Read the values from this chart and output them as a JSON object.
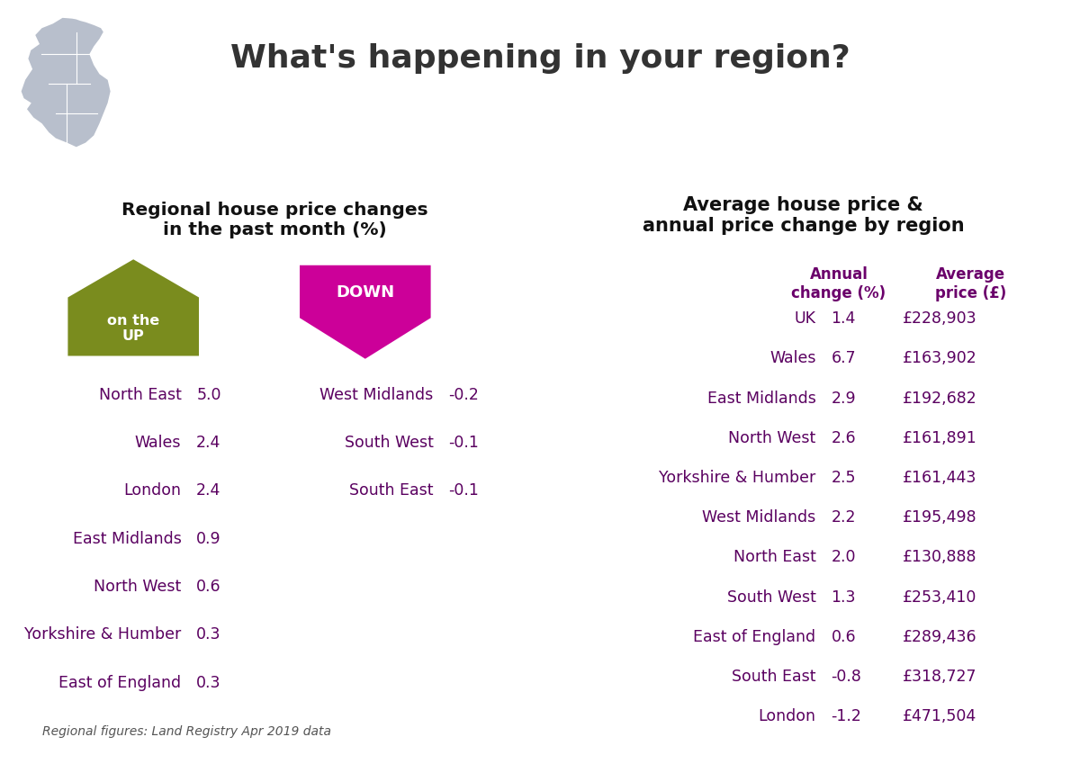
{
  "title": "What's happening in your region?",
  "title_color": "#333333",
  "bg_color": "#ffffff",
  "panel_bg": "#e8e2ee",
  "left_panel_title": "Regional house price changes\nin the past month (%)",
  "up_label": "on the\nUP",
  "down_label": "DOWN",
  "up_color": "#7a8c1e",
  "down_color": "#cc0099",
  "up_regions": [
    [
      "North East",
      "5.0"
    ],
    [
      "Wales",
      "2.4"
    ],
    [
      "London",
      "2.4"
    ],
    [
      "East Midlands",
      "0.9"
    ],
    [
      "North West",
      "0.6"
    ],
    [
      "Yorkshire & Humber",
      "0.3"
    ],
    [
      "East of England",
      "0.3"
    ]
  ],
  "down_regions": [
    [
      "West Midlands",
      "-0.2"
    ],
    [
      "South West",
      "-0.1"
    ],
    [
      "South East",
      "-0.1"
    ]
  ],
  "footnote": "Regional figures: Land Registry Apr 2019 data",
  "right_panel_title": "Average house price &\nannual price change by region",
  "col_header1": "Annual\nchange (%)",
  "col_header2": "Average\nprice (£)",
  "header_color": "#6b006b",
  "table_rows": [
    [
      "UK",
      "1.4",
      "£228,903"
    ],
    [
      "Wales",
      "6.7",
      "£163,902"
    ],
    [
      "East Midlands",
      "2.9",
      "£192,682"
    ],
    [
      "North West",
      "2.6",
      "£161,891"
    ],
    [
      "Yorkshire & Humber",
      "2.5",
      "£161,443"
    ],
    [
      "West Midlands",
      "2.2",
      "£195,498"
    ],
    [
      "North East",
      "2.0",
      "£130,888"
    ],
    [
      "South West",
      "1.3",
      "£253,410"
    ],
    [
      "East of England",
      "0.6",
      "£289,436"
    ],
    [
      "South East",
      "-0.8",
      "£318,727"
    ],
    [
      "London",
      "-1.2",
      "£471,504"
    ]
  ],
  "region_text_color": "#5a0060"
}
